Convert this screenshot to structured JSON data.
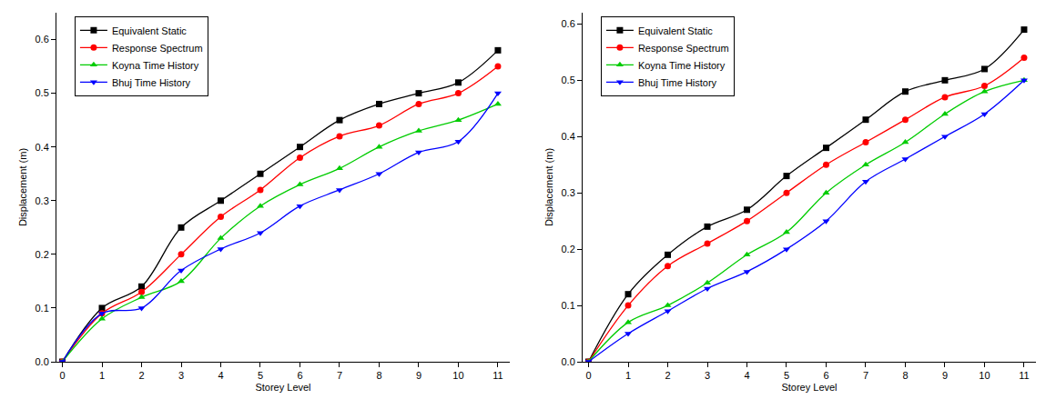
{
  "chart_data": [
    {
      "type": "line",
      "x_label": "Storey Level",
      "y_label": "Displacement (m)",
      "x": [
        0,
        1,
        2,
        3,
        4,
        5,
        6,
        7,
        8,
        9,
        10,
        11
      ],
      "xlim": [
        -0.15,
        11.3
      ],
      "xticks": [
        0,
        1,
        2,
        3,
        4,
        5,
        6,
        7,
        8,
        9,
        10,
        11
      ],
      "ylim": [
        0,
        0.65
      ],
      "yticks": [
        {
          "value": 0,
          "label": "0.0"
        },
        0.1,
        0.2,
        0.3,
        0.4,
        0.5,
        0.6
      ],
      "grid": false,
      "legend": "upper left",
      "series": [
        {
          "name": "Equivalent Static",
          "color": "#000000",
          "marker": "square",
          "line_style": "solid",
          "values": [
            0,
            0.1,
            0.14,
            0.25,
            0.3,
            0.35,
            0.4,
            0.45,
            0.48,
            0.5,
            0.52,
            0.58
          ]
        },
        {
          "name": "Response Spectrum",
          "color": "#ff0000",
          "marker": "circle",
          "line_style": "solid",
          "values": [
            0,
            0.09,
            0.13,
            0.2,
            0.27,
            0.32,
            0.38,
            0.42,
            0.44,
            0.48,
            0.5,
            0.55
          ]
        },
        {
          "name": "Koyna Time History",
          "color": "#00cc00",
          "marker": "triangle-up",
          "line_style": "solid",
          "values": [
            0,
            0.08,
            0.12,
            0.15,
            0.23,
            0.29,
            0.33,
            0.36,
            0.4,
            0.43,
            0.45,
            0.48
          ]
        },
        {
          "name": "Bhuj Time History",
          "color": "#0000ff",
          "marker": "triangle-down",
          "line_style": "solid",
          "values": [
            0,
            0.09,
            0.1,
            0.17,
            0.21,
            0.24,
            0.29,
            0.32,
            0.35,
            0.39,
            0.41,
            0.5
          ]
        }
      ]
    },
    {
      "type": "line",
      "x_label": "Storey Level",
      "y_label": "Displacement (m)",
      "x": [
        0,
        1,
        2,
        3,
        4,
        5,
        6,
        7,
        8,
        9,
        10,
        11
      ],
      "xlim": [
        -0.15,
        11.3
      ],
      "xticks": [
        0,
        1,
        2,
        3,
        4,
        5,
        6,
        7,
        8,
        9,
        10,
        11
      ],
      "ylim": [
        0,
        0.62
      ],
      "yticks": [
        {
          "value": 0,
          "label": "0.0"
        },
        0.1,
        0.2,
        0.3,
        0.4,
        0.5,
        0.6
      ],
      "grid": false,
      "legend": "upper left",
      "series": [
        {
          "name": "Equivalent Static",
          "color": "#000000",
          "marker": "square",
          "line_style": "solid",
          "values": [
            0,
            0.12,
            0.19,
            0.24,
            0.27,
            0.33,
            0.38,
            0.43,
            0.48,
            0.5,
            0.52,
            0.59
          ]
        },
        {
          "name": "Response Spectrum",
          "color": "#ff0000",
          "marker": "circle",
          "line_style": "solid",
          "values": [
            0,
            0.1,
            0.17,
            0.21,
            0.25,
            0.3,
            0.35,
            0.39,
            0.43,
            0.47,
            0.49,
            0.54
          ]
        },
        {
          "name": "Koyna Time History",
          "color": "#00cc00",
          "marker": "triangle-up",
          "line_style": "solid",
          "values": [
            0,
            0.07,
            0.1,
            0.14,
            0.19,
            0.23,
            0.3,
            0.35,
            0.39,
            0.44,
            0.48,
            0.5
          ]
        },
        {
          "name": "Bhuj Time History",
          "color": "#0000ff",
          "marker": "triangle-down",
          "line_style": "solid",
          "values": [
            0,
            0.05,
            0.09,
            0.13,
            0.16,
            0.2,
            0.25,
            0.32,
            0.36,
            0.4,
            0.44,
            0.5
          ]
        }
      ]
    }
  ]
}
